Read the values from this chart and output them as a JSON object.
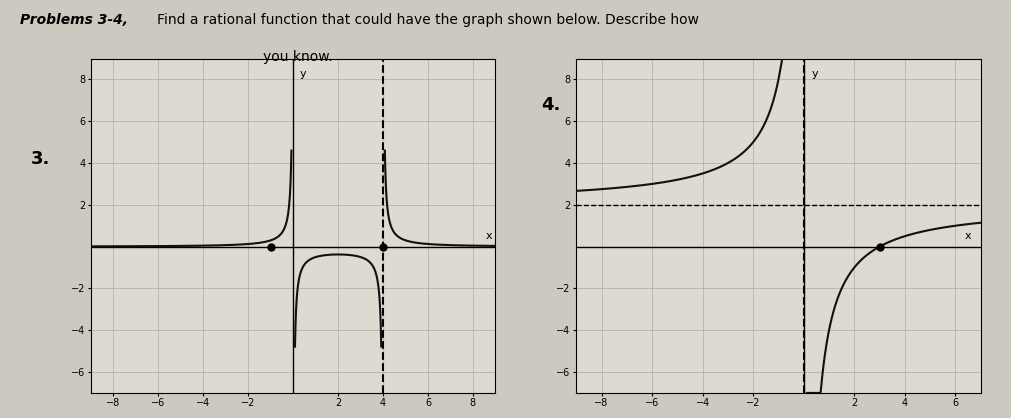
{
  "title_bold": "Problems 3-4,",
  "title_normal": " Find a rational function that could have the graph shown below. Describe how\nyou know.",
  "label3": "3.",
  "label4": "4.",
  "page_bg": "#cdc9c0",
  "graph_bg": "#dedad2",
  "grid_color": "#b0aca4",
  "graph3": {
    "xlim": [
      -9,
      9
    ],
    "ylim": [
      -7,
      9
    ],
    "xticks": [
      -8,
      -6,
      -4,
      -2,
      2,
      4,
      6,
      8
    ],
    "yticks": [
      -6,
      -4,
      -2,
      2,
      4,
      6,
      8
    ],
    "ytick_labels": [
      "-6",
      "-4",
      "-2",
      "2",
      "4",
      "6",
      "8"
    ],
    "vasymptote1": 0,
    "vasymptote2": 4,
    "dot1": [
      -1,
      0
    ],
    "dot2": [
      4,
      0
    ],
    "curve_color": "#111111",
    "scale": 1.5
  },
  "graph4": {
    "xlim": [
      -9,
      7
    ],
    "ylim": [
      -7,
      9
    ],
    "xticks": [
      -8,
      -6,
      -4,
      -2,
      2,
      4,
      6
    ],
    "yticks": [
      -6,
      -4,
      -2,
      2,
      4,
      6,
      8
    ],
    "vasymptote": 0,
    "hasymptote": 2,
    "dot": [
      3,
      0
    ],
    "curve_color": "#111111",
    "scale": -4
  }
}
